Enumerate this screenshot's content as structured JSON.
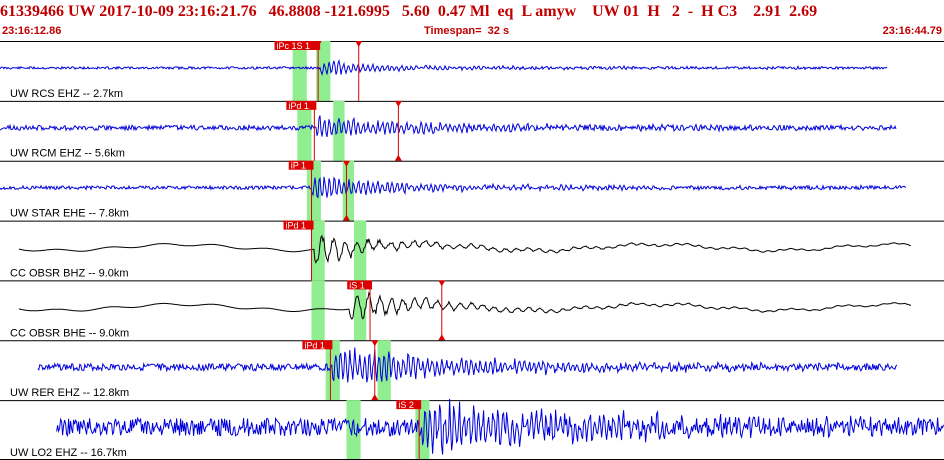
{
  "header": {
    "title": "61339466 UW 2017-10-09 23:16:21.76   46.8808 -121.6995   5.60  0.47 Ml  eq  L amyw    UW 01  H   2  -  H C3    2.91  2.69",
    "start_time": "23:16:12.86",
    "timespan": "Timespan=  32 s",
    "end_time": "23:16:44.79"
  },
  "colors": {
    "header_text": "#c00000",
    "trace_blue": "#0000dd",
    "trace_black": "#000000",
    "pick_red": "#dd0000",
    "window_green": "#90ee90",
    "separator": "#000000"
  },
  "traces": [
    {
      "label": "UW RCS EHZ -- 2.7km",
      "color": "blue",
      "amp": 6,
      "noise": 1.2,
      "onset": 0.34,
      "decay": 0.8,
      "end": 0.94,
      "start": 0.0,
      "seed": 11,
      "picks": [
        {
          "label": "iPc 1S 1",
          "t": 0.337,
          "marker": "triangle-down"
        },
        {
          "label": "",
          "t": 0.38,
          "marker": "triangle-down"
        }
      ],
      "windows": [
        [
          0.31,
          0.325
        ],
        [
          0.335,
          0.35
        ]
      ]
    },
    {
      "label": "UW RCM EHZ -- 5.6km",
      "color": "blue",
      "amp": 9,
      "noise": 2.5,
      "onset": 0.335,
      "decay": 1.5,
      "end": 0.95,
      "start": 0.0,
      "seed": 23,
      "picks": [
        {
          "label": "iPd 1",
          "t": 0.333,
          "marker": "none"
        },
        {
          "label": "",
          "t": 0.422,
          "marker": "triangle-both"
        }
      ],
      "windows": [
        [
          0.315,
          0.33
        ],
        [
          0.353,
          0.365
        ]
      ]
    },
    {
      "label": "UW STAR EHE -- 7.8km",
      "color": "blue",
      "amp": 10,
      "noise": 1.8,
      "onset": 0.33,
      "decay": 1.0,
      "end": 0.96,
      "start": 0.0,
      "seed": 37,
      "picks": [
        {
          "label": "iP 1",
          "t": 0.33,
          "marker": "none"
        },
        {
          "label": "",
          "t": 0.367,
          "marker": "triangle-both"
        }
      ],
      "windows": [
        [
          0.325,
          0.34
        ],
        [
          0.363,
          0.375
        ]
      ]
    },
    {
      "label": "CC OBSR BHZ -- 9.0km",
      "color": "black",
      "amp": 12,
      "noise": 0.4,
      "onset": 0.333,
      "decay": 0.55,
      "end": 0.965,
      "start": 0.02,
      "seed": 41,
      "picks": [
        {
          "label": "iPd 1",
          "t": 0.33,
          "marker": "none"
        }
      ],
      "windows": [
        [
          0.33,
          0.344
        ],
        [
          0.375,
          0.388
        ]
      ]
    },
    {
      "label": "CC OBSR BHE -- 9.0km",
      "color": "black",
      "amp": 11,
      "noise": 0.4,
      "onset": 0.37,
      "decay": 0.9,
      "end": 0.965,
      "start": 0.02,
      "seed": 53,
      "picks": [
        {
          "label": "iS 1",
          "t": 0.392,
          "marker": "none"
        },
        {
          "label": "",
          "t": 0.468,
          "marker": "triangle-both"
        }
      ],
      "windows": [
        [
          0.33,
          0.344
        ],
        [
          0.375,
          0.388
        ]
      ]
    },
    {
      "label": "UW RER EHZ -- 12.8km",
      "color": "blue",
      "amp": 16,
      "noise": 3.5,
      "onset": 0.352,
      "decay": 1.8,
      "end": 0.95,
      "start": 0.04,
      "seed": 67,
      "picks": [
        {
          "label": "iPd 1",
          "t": 0.35,
          "marker": "none"
        },
        {
          "label": "",
          "t": 0.397,
          "marker": "triangle-both"
        }
      ],
      "windows": [
        [
          0.345,
          0.36
        ],
        [
          0.4,
          0.414
        ]
      ]
    },
    {
      "label": "UW LO2 EHZ -- 16.7km",
      "color": "blue",
      "amp": 20,
      "noise": 9,
      "onset": 0.447,
      "decay": 3,
      "end": 1.0,
      "start": 0.06,
      "seed": 79,
      "picks": [
        {
          "label": "iS 2",
          "t": 0.444,
          "marker": "none"
        }
      ],
      "windows": [
        [
          0.367,
          0.382
        ],
        [
          0.44,
          0.455
        ]
      ]
    }
  ]
}
